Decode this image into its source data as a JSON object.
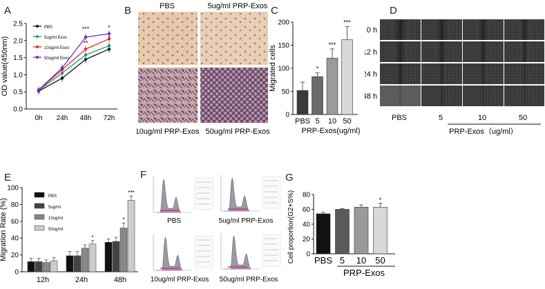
{
  "panel_labels": {
    "a": "A",
    "b": "B",
    "c": "C",
    "d": "D",
    "e": "E",
    "f": "F",
    "g": "G"
  },
  "chart_data": [
    {
      "panel": "A",
      "type": "line",
      "x": [
        "0h",
        "24h",
        "48h",
        "72h"
      ],
      "ylabel": "OD value(450nm)",
      "ylim": [
        0,
        2.5
      ],
      "yticks": [
        "0.0",
        "0.5",
        "1.0",
        "1.5",
        "2.0",
        "2.5"
      ],
      "series": [
        {
          "name": "PBS",
          "color": "#111111",
          "values": [
            0.52,
            0.9,
            1.45,
            1.75
          ]
        },
        {
          "name": "5ug/ml Exos",
          "color": "#1a9e6a",
          "values": [
            0.54,
            1.05,
            1.58,
            1.85
          ]
        },
        {
          "name": "10ug/ml Exos",
          "color": "#e02a2a",
          "values": [
            0.55,
            1.15,
            1.75,
            2.05
          ]
        },
        {
          "name": "50ug/ml Exos",
          "color": "#6a2bb5",
          "values": [
            0.56,
            1.2,
            2.1,
            2.2
          ]
        }
      ],
      "annotations": [
        {
          "x": "48h",
          "text": "***",
          "y": 2.28
        },
        {
          "x": "48h",
          "text": "**",
          "y": 1.86
        },
        {
          "x": "72h",
          "text": "*",
          "y": 2.32
        },
        {
          "x": "72h",
          "text": "*",
          "y": 2.02
        }
      ]
    },
    {
      "panel": "C",
      "type": "bar",
      "categories": [
        "PBS",
        "5",
        "10",
        "50"
      ],
      "values": [
        52,
        82,
        122,
        162
      ],
      "errors": [
        18,
        8,
        20,
        28
      ],
      "colors": [
        "#3a3a3a",
        "#6a6a6a",
        "#9a9a9a",
        "#d8d8d8"
      ],
      "ylabel": "Migrated cells",
      "xlabel": "PRP-Exos(ug/ml)",
      "ylim": [
        0,
        200
      ],
      "yticks": [
        "0",
        "50",
        "100",
        "150",
        "200"
      ],
      "significance": [
        "",
        "*",
        "***",
        "***"
      ]
    },
    {
      "panel": "E",
      "type": "bar",
      "categories": [
        "12h",
        "24h",
        "48h"
      ],
      "ylabel": "Migration Rate (%)",
      "ylim": [
        0,
        100
      ],
      "yticks": [
        "0",
        "20",
        "40",
        "60",
        "80",
        "100"
      ],
      "series": [
        {
          "name": "PBS",
          "color": "#111111",
          "values": [
            12,
            19,
            35
          ]
        },
        {
          "name": "5ug/ml",
          "color": "#444444",
          "values": [
            12,
            19,
            36
          ]
        },
        {
          "name": "10ug/ml",
          "color": "#888888",
          "values": [
            11,
            28,
            52
          ]
        },
        {
          "name": "50ug/ml",
          "color": "#cccccc",
          "values": [
            13,
            33,
            85
          ]
        }
      ],
      "errors": [
        [
          4,
          5,
          4
        ],
        [
          4,
          5,
          5
        ],
        [
          3,
          4,
          6
        ],
        [
          4,
          4,
          5
        ]
      ],
      "significance": [
        [
          "",
          "",
          "",
          ""
        ],
        [
          "",
          "",
          "",
          "*"
        ],
        [
          "",
          "",
          "*",
          "***"
        ]
      ]
    },
    {
      "panel": "G",
      "type": "bar",
      "categories": [
        "PBS",
        "5",
        "10",
        "50"
      ],
      "values": [
        54,
        60,
        63,
        63
      ],
      "errors": [
        2,
        1,
        3,
        5
      ],
      "colors": [
        "#111111",
        "#5a5a5a",
        "#9a9a9a",
        "#d8d8d8"
      ],
      "ylabel": "Cell proportion(G2+S%)",
      "xlabel": "PRP-Exos",
      "ylim": [
        0,
        80
      ],
      "yticks": [
        "0",
        "20",
        "40",
        "60",
        "80"
      ],
      "significance": [
        "",
        "",
        "",
        "*"
      ]
    }
  ],
  "panel_b": {
    "labels": [
      "PBS",
      "5ug/ml PRP-Exos",
      "10ug/ml PRP-Exos",
      "50ug/ml PRP-Exos"
    ]
  },
  "panel_d": {
    "rows": [
      "0 h",
      "12 h",
      "24 h",
      "48 h"
    ],
    "cols": [
      "PBS",
      "5",
      "10",
      "50"
    ],
    "xlabel": "PRP-Exos（ug/ml）"
  },
  "panel_f": {
    "labels": [
      "PBS",
      "5ug/ml PRP-Exos",
      "10ug/ml PRP-Exos",
      "50ug/ml PRP-Exos"
    ]
  }
}
